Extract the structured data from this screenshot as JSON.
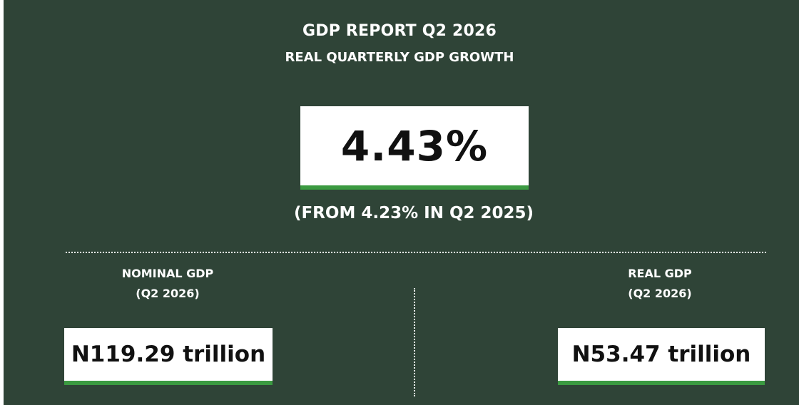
{
  "header": {
    "title": "GDP REPORT Q2 2026",
    "subtitle": "REAL QUARTERLY GDP GROWTH"
  },
  "highlight": {
    "value": "4.43%",
    "comparison": "(FROM 4.23% IN Q2 2025)"
  },
  "nominal_gdp": {
    "label": "NOMINAL GDP",
    "period": "(Q2 2026)",
    "value": "N119.29 trillion"
  },
  "real_gdp": {
    "label": "REAL GDP",
    "period": "(Q2 2026)",
    "value": "N53.47 trillion"
  },
  "colors": {
    "background": "#2f4437",
    "accent": "#3b9a41",
    "box": "#ffffff"
  }
}
